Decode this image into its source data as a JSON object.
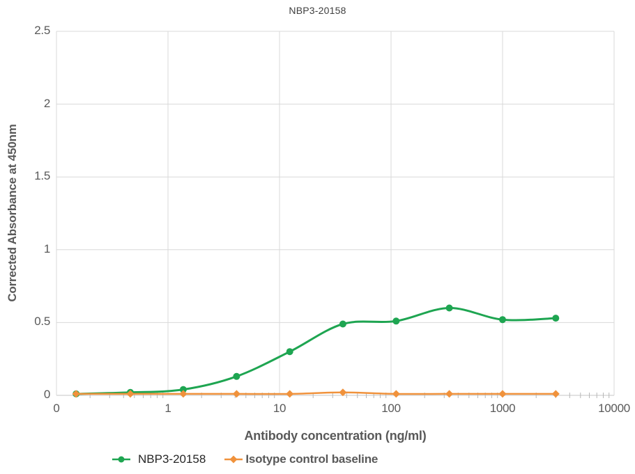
{
  "title": "NBP3-20158",
  "y_axis": {
    "title": "Corrected Absorbance at 450nm",
    "min": 0,
    "max": 2.5,
    "tick_step": 0.5,
    "tick_values": [
      0,
      0.5,
      1,
      1.5,
      2,
      2.5
    ],
    "tick_labels": [
      "0",
      "0.5",
      "1",
      "1.5",
      "2",
      "2.5"
    ]
  },
  "x_axis": {
    "title": "Antibody concentration (ng/ml)",
    "scale": "log",
    "min": 0.1,
    "max": 10000,
    "tick_values": [
      0.1,
      1,
      10,
      100,
      1000,
      10000
    ],
    "tick_labels": [
      "0",
      "1",
      "10",
      "100",
      "1000",
      "10000"
    ]
  },
  "legend": [
    {
      "label": "NBP3-20158",
      "color": "#1ea551",
      "marker": "circle"
    },
    {
      "label": "Isotype control baseline",
      "color": "#f0923c",
      "marker": "diamond"
    }
  ],
  "colors": {
    "grid": "#d9d9d9",
    "axis_line": "#c6c6c6",
    "minor_tick": "#b7b7b7",
    "tick_text": "#595959",
    "title_text": "#3f3f3f",
    "series_green": "#1ea551",
    "series_orange": "#f0923c"
  },
  "chart_data": {
    "type": "line",
    "title": "NBP3-20158",
    "xlabel": "Antibody concentration (ng/ml)",
    "ylabel": "Corrected Absorbance at 450nm",
    "xscale": "log",
    "xlim": [
      0.1,
      10000
    ],
    "ylim": [
      0,
      2.5
    ],
    "grid": true,
    "legend_position": "bottom",
    "x": [
      0.15,
      0.46,
      1.37,
      4.12,
      12.35,
      37,
      111,
      333,
      1000,
      3000
    ],
    "series": [
      {
        "name": "NBP3-20158",
        "color": "#1ea551",
        "marker": "circle",
        "line_width": 3,
        "values": [
          0.01,
          0.02,
          0.04,
          0.13,
          0.3,
          0.49,
          0.51,
          0.6,
          0.52,
          0.53
        ]
      },
      {
        "name": "Isotype control baseline",
        "color": "#f0923c",
        "marker": "diamond",
        "line_width": 2.5,
        "values": [
          0.01,
          0.01,
          0.01,
          0.01,
          0.01,
          0.02,
          0.01,
          0.01,
          0.01,
          0.01
        ]
      }
    ]
  }
}
